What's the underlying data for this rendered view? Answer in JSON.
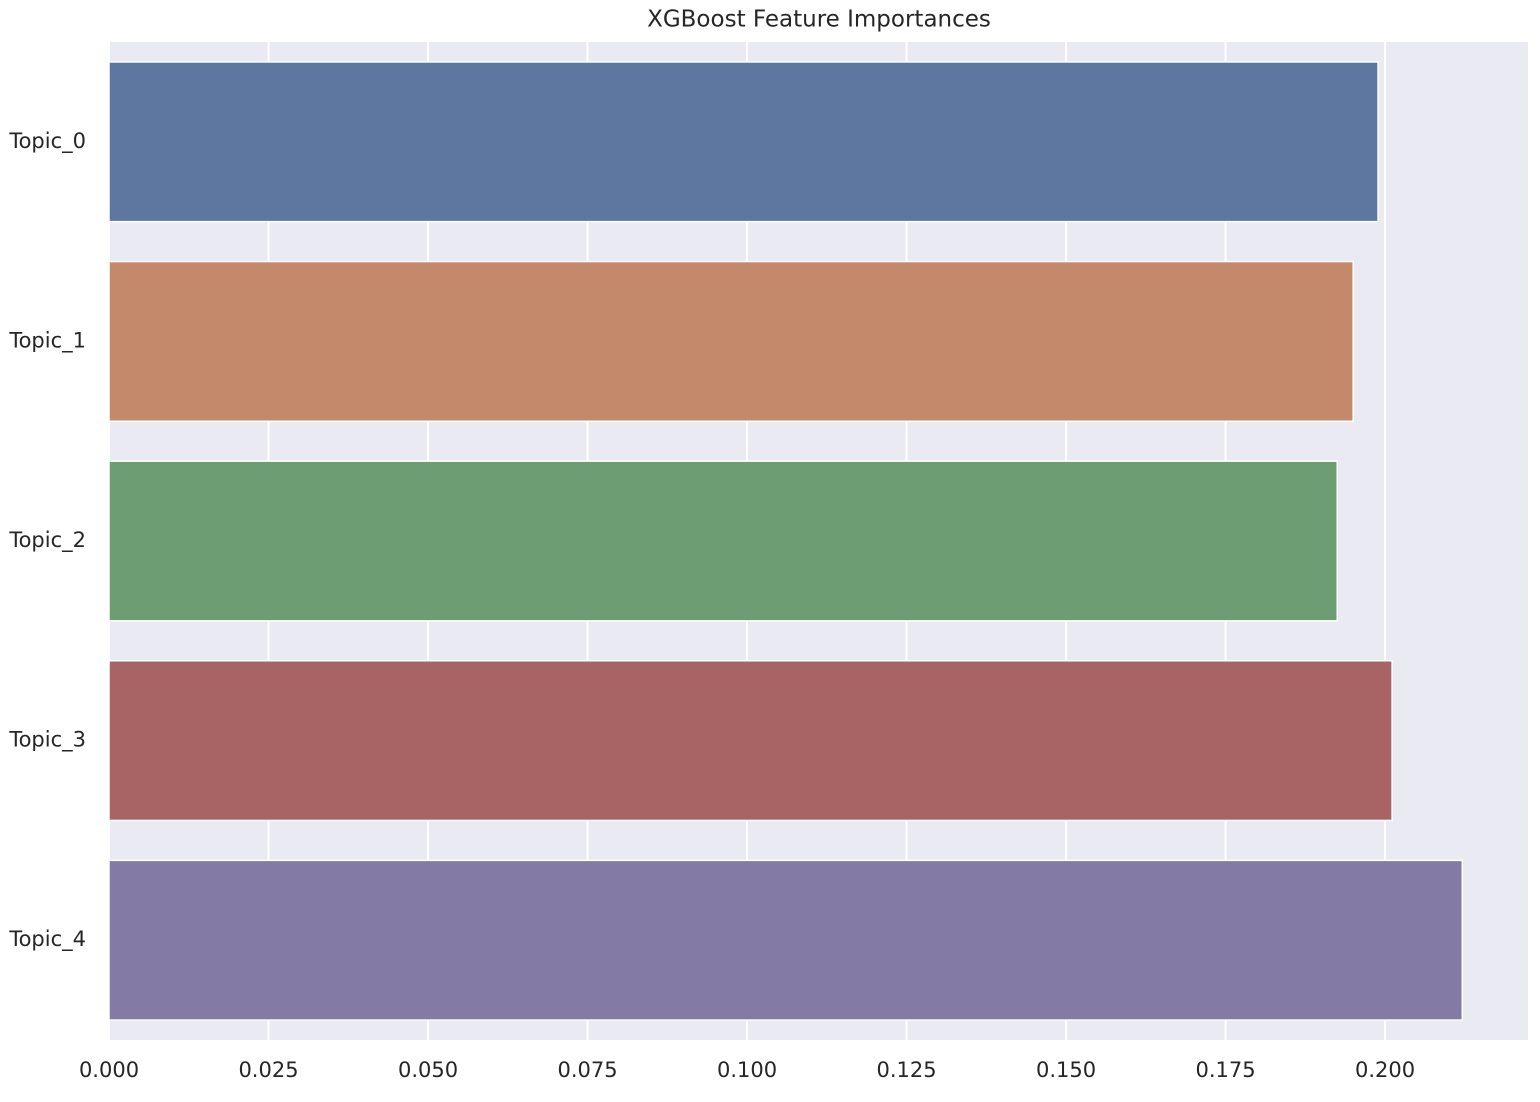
{
  "chart_data": {
    "type": "bar",
    "orientation": "horizontal",
    "title": "XGBoost Feature Importances",
    "categories": [
      "Topic_0",
      "Topic_1",
      "Topic_2",
      "Topic_3",
      "Topic_4"
    ],
    "values": [
      0.1989,
      0.195,
      0.1925,
      0.2011,
      0.2121
    ],
    "colors": [
      "#5e77a0",
      "#c4896a",
      "#6d9d72",
      "#a86464",
      "#837ba6"
    ],
    "xlim": [
      0,
      0.2224
    ],
    "xticks": [
      {
        "value": 0,
        "label": "0.000"
      },
      {
        "value": 0.025,
        "label": "0.025"
      },
      {
        "value": 0.05,
        "label": "0.050"
      },
      {
        "value": 0.075,
        "label": "0.075"
      },
      {
        "value": 0.1,
        "label": "0.100"
      },
      {
        "value": 0.125,
        "label": "0.125"
      },
      {
        "value": 0.15,
        "label": "0.150"
      },
      {
        "value": 0.175,
        "label": "0.175"
      },
      {
        "value": 0.2,
        "label": "0.200"
      }
    ],
    "grid": true
  }
}
